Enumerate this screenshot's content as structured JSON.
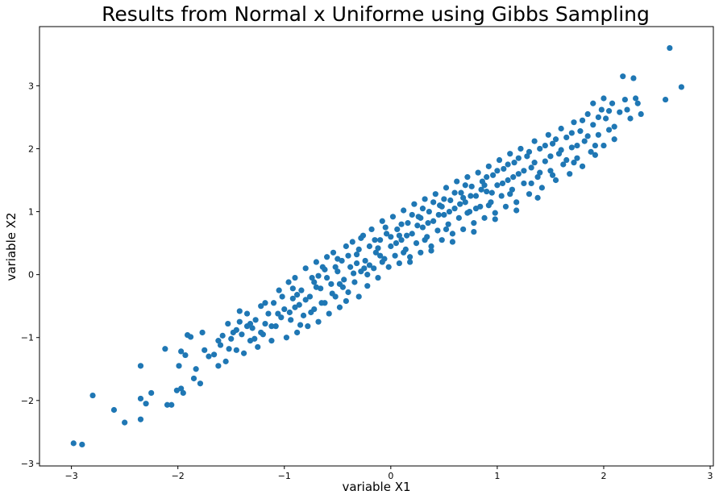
{
  "chart_data": {
    "type": "scatter",
    "title": "Results from Normal x Uniforme using Gibbs Sampling",
    "xlabel": "variable X1",
    "ylabel": "variable X2",
    "xlim": [
      -3.3,
      3.03
    ],
    "ylim": [
      -3.04,
      3.94
    ],
    "xticks": [
      -3,
      -2,
      -1,
      0,
      1,
      2,
      3
    ],
    "yticks": [
      -3,
      -2,
      -1,
      0,
      1,
      2,
      3
    ],
    "grid": false,
    "color": "#1f77b4",
    "points": [
      [
        -2.98,
        -2.68
      ],
      [
        -2.9,
        -2.7
      ],
      [
        -2.8,
        -1.92
      ],
      [
        -2.6,
        -2.15
      ],
      [
        -2.5,
        -2.35
      ],
      [
        -2.35,
        -2.3
      ],
      [
        -2.35,
        -1.97
      ],
      [
        -2.35,
        -1.45
      ],
      [
        -2.3,
        -2.05
      ],
      [
        -2.25,
        -1.88
      ],
      [
        -2.12,
        -1.18
      ],
      [
        -2.1,
        -2.07
      ],
      [
        -2.06,
        -2.07
      ],
      [
        -2.01,
        -1.84
      ],
      [
        -1.97,
        -1.81
      ],
      [
        -1.95,
        -1.88
      ],
      [
        -1.99,
        -1.45
      ],
      [
        -1.97,
        -1.22
      ],
      [
        -1.93,
        -1.28
      ],
      [
        -1.91,
        -0.96
      ],
      [
        -1.88,
        -0.99
      ],
      [
        -1.85,
        -1.65
      ],
      [
        -1.83,
        -1.5
      ],
      [
        -1.79,
        -1.73
      ],
      [
        -1.75,
        -1.2
      ],
      [
        -1.77,
        -0.92
      ],
      [
        -1.71,
        -1.3
      ],
      [
        -1.66,
        -1.27
      ],
      [
        -1.62,
        -1.45
      ],
      [
        -1.6,
        -1.12
      ],
      [
        -1.58,
        -0.97
      ],
      [
        -1.55,
        -1.38
      ],
      [
        -1.53,
        -0.78
      ],
      [
        -1.5,
        -1.02
      ],
      [
        -1.48,
        -0.92
      ],
      [
        -1.45,
        -1.2
      ],
      [
        -1.42,
        -0.75
      ],
      [
        -1.4,
        -0.95
      ],
      [
        -1.38,
        -1.25
      ],
      [
        -1.35,
        -0.62
      ],
      [
        -1.32,
        -1.05
      ],
      [
        -1.3,
        -0.85
      ],
      [
        -1.27,
        -0.72
      ],
      [
        -1.25,
        -1.15
      ],
      [
        -1.22,
        -0.5
      ],
      [
        -1.2,
        -0.95
      ],
      [
        -1.18,
        -0.78
      ],
      [
        -1.15,
        -0.62
      ],
      [
        -1.12,
        -1.05
      ],
      [
        -1.1,
        -0.45
      ],
      [
        -1.08,
        -0.82
      ],
      [
        -1.05,
        -0.25
      ],
      [
        -1.03,
        -0.68
      ],
      [
        -1.0,
        -0.55
      ],
      [
        -0.98,
        -1.0
      ],
      [
        -0.96,
        -0.12
      ],
      [
        -0.94,
        -0.72
      ],
      [
        -0.92,
        -0.38
      ],
      [
        -0.9,
        -0.05
      ],
      [
        -0.88,
        -0.92
      ],
      [
        -0.86,
        -0.48
      ],
      [
        -0.84,
        -0.25
      ],
      [
        -0.82,
        -0.65
      ],
      [
        -0.8,
        0.1
      ],
      [
        -0.78,
        -0.82
      ],
      [
        -0.76,
        -0.35
      ],
      [
        -0.74,
        -0.05
      ],
      [
        -0.72,
        -0.55
      ],
      [
        -0.7,
        0.2
      ],
      [
        -0.68,
        -0.75
      ],
      [
        -0.66,
        -0.22
      ],
      [
        -0.64,
        0.12
      ],
      [
        -0.62,
        -0.45
      ],
      [
        -0.6,
        0.28
      ],
      [
        -0.58,
        -0.62
      ],
      [
        -0.56,
        -0.15
      ],
      [
        -0.54,
        0.35
      ],
      [
        -0.52,
        -0.35
      ],
      [
        -0.5,
        0.05
      ],
      [
        -0.48,
        -0.52
      ],
      [
        -0.46,
        0.22
      ],
      [
        -0.44,
        -0.08
      ],
      [
        -0.42,
        0.45
      ],
      [
        -0.4,
        -0.28
      ],
      [
        -0.38,
        0.12
      ],
      [
        -0.36,
        0.52
      ],
      [
        -0.34,
        -0.12
      ],
      [
        -0.32,
        0.32
      ],
      [
        -0.3,
        -0.35
      ],
      [
        -0.28,
        0.05
      ],
      [
        -0.26,
        0.62
      ],
      [
        -0.24,
        0.22
      ],
      [
        -0.22,
        -0.18
      ],
      [
        -0.2,
        0.45
      ],
      [
        -0.18,
        0.72
      ],
      [
        -0.16,
        0.1
      ],
      [
        -0.14,
        0.35
      ],
      [
        -0.12,
        -0.05
      ],
      [
        -0.1,
        0.55
      ],
      [
        -0.08,
        0.85
      ],
      [
        -0.06,
        0.25
      ],
      [
        -0.04,
        0.65
      ],
      [
        -0.02,
        0.12
      ],
      [
        0.0,
        0.45
      ],
      [
        0.02,
        0.92
      ],
      [
        0.04,
        0.3
      ],
      [
        0.06,
        0.72
      ],
      [
        0.08,
        0.18
      ],
      [
        0.1,
        0.55
      ],
      [
        0.12,
        1.02
      ],
      [
        0.14,
        0.4
      ],
      [
        0.16,
        0.82
      ],
      [
        0.18,
        0.28
      ],
      [
        0.2,
        0.65
      ],
      [
        0.22,
        1.12
      ],
      [
        0.24,
        0.5
      ],
      [
        0.26,
        0.92
      ],
      [
        0.28,
        0.35
      ],
      [
        0.3,
        0.75
      ],
      [
        0.32,
        1.2
      ],
      [
        0.34,
        0.6
      ],
      [
        0.36,
        1.0
      ],
      [
        0.38,
        0.45
      ],
      [
        0.4,
        0.85
      ],
      [
        0.42,
        1.28
      ],
      [
        0.44,
        0.7
      ],
      [
        0.46,
        1.1
      ],
      [
        0.48,
        0.55
      ],
      [
        0.5,
        0.95
      ],
      [
        0.52,
        1.38
      ],
      [
        0.54,
        0.8
      ],
      [
        0.56,
        1.18
      ],
      [
        0.58,
        0.65
      ],
      [
        0.6,
        1.05
      ],
      [
        0.62,
        1.48
      ],
      [
        0.64,
        0.9
      ],
      [
        0.66,
        1.3
      ],
      [
        0.68,
        0.72
      ],
      [
        0.7,
        1.15
      ],
      [
        0.72,
        1.55
      ],
      [
        0.74,
        1.0
      ],
      [
        0.76,
        1.4
      ],
      [
        0.78,
        0.82
      ],
      [
        0.8,
        1.25
      ],
      [
        0.82,
        1.62
      ],
      [
        0.84,
        1.08
      ],
      [
        0.86,
        1.48
      ],
      [
        0.88,
        0.9
      ],
      [
        0.9,
        1.32
      ],
      [
        0.92,
        1.72
      ],
      [
        0.94,
        1.15
      ],
      [
        0.96,
        1.58
      ],
      [
        0.98,
        0.98
      ],
      [
        1.0,
        1.42
      ],
      [
        1.02,
        1.82
      ],
      [
        1.04,
        1.25
      ],
      [
        1.06,
        1.68
      ],
      [
        1.08,
        1.08
      ],
      [
        1.1,
        1.5
      ],
      [
        1.12,
        1.92
      ],
      [
        1.14,
        1.35
      ],
      [
        1.16,
        1.78
      ],
      [
        1.18,
        1.15
      ],
      [
        1.2,
        1.6
      ],
      [
        1.22,
        2.0
      ],
      [
        1.25,
        1.45
      ],
      [
        1.28,
        1.88
      ],
      [
        1.3,
        1.28
      ],
      [
        1.32,
        1.7
      ],
      [
        1.35,
        2.12
      ],
      [
        1.38,
        1.55
      ],
      [
        1.4,
        2.0
      ],
      [
        1.42,
        1.38
      ],
      [
        1.45,
        1.8
      ],
      [
        1.48,
        2.22
      ],
      [
        1.5,
        1.65
      ],
      [
        1.52,
        2.08
      ],
      [
        1.55,
        1.5
      ],
      [
        1.58,
        1.92
      ],
      [
        1.6,
        2.32
      ],
      [
        1.62,
        1.75
      ],
      [
        1.65,
        2.18
      ],
      [
        1.68,
        1.6
      ],
      [
        1.7,
        2.02
      ],
      [
        1.72,
        2.42
      ],
      [
        1.75,
        1.85
      ],
      [
        1.78,
        2.28
      ],
      [
        1.8,
        1.72
      ],
      [
        1.82,
        2.12
      ],
      [
        1.85,
        2.55
      ],
      [
        1.88,
        1.95
      ],
      [
        1.9,
        2.38
      ],
      [
        1.92,
        1.9
      ],
      [
        1.95,
        2.22
      ],
      [
        1.98,
        2.62
      ],
      [
        2.0,
        2.05
      ],
      [
        2.02,
        2.48
      ],
      [
        2.05,
        2.3
      ],
      [
        2.08,
        2.72
      ],
      [
        2.1,
        2.15
      ],
      [
        2.15,
        2.58
      ],
      [
        2.18,
        3.15
      ],
      [
        2.2,
        2.78
      ],
      [
        2.22,
        2.62
      ],
      [
        2.25,
        2.48
      ],
      [
        2.28,
        3.12
      ],
      [
        2.32,
        2.72
      ],
      [
        2.35,
        2.55
      ],
      [
        2.58,
        2.78
      ],
      [
        2.62,
        3.6
      ],
      [
        2.73,
        2.98
      ],
      [
        -1.45,
        -0.88
      ],
      [
        -1.35,
        -0.82
      ],
      [
        -1.28,
        -1.02
      ],
      [
        -1.18,
        -0.45
      ],
      [
        -1.12,
        -0.82
      ],
      [
        -1.06,
        -0.62
      ],
      [
        -1.02,
        -0.35
      ],
      [
        -0.95,
        -0.6
      ],
      [
        -0.9,
        -0.52
      ],
      [
        -0.85,
        -0.8
      ],
      [
        -0.8,
        -0.4
      ],
      [
        -0.75,
        -0.6
      ],
      [
        -0.7,
        -0.2
      ],
      [
        -0.65,
        -0.45
      ],
      [
        -0.6,
        -0.05
      ],
      [
        -0.55,
        -0.3
      ],
      [
        -0.5,
        0.25
      ],
      [
        -0.45,
        -0.2
      ],
      [
        -0.4,
        0.3
      ],
      [
        -0.35,
        0.02
      ],
      [
        -0.3,
        0.4
      ],
      [
        -0.25,
        0.1
      ],
      [
        -0.2,
        0.15
      ],
      [
        -0.15,
        0.55
      ],
      [
        -0.1,
        0.3
      ],
      [
        -0.05,
        0.75
      ],
      [
        0.0,
        0.6
      ],
      [
        0.05,
        0.5
      ],
      [
        0.1,
        0.8
      ],
      [
        0.15,
        0.62
      ],
      [
        0.2,
        0.95
      ],
      [
        0.25,
        0.78
      ],
      [
        0.3,
        1.05
      ],
      [
        0.35,
        0.82
      ],
      [
        0.4,
        1.15
      ],
      [
        0.45,
        0.95
      ],
      [
        0.5,
        1.2
      ],
      [
        0.55,
        1.0
      ],
      [
        0.6,
        1.3
      ],
      [
        0.65,
        1.12
      ],
      [
        0.7,
        1.42
      ],
      [
        0.75,
        1.25
      ],
      [
        0.8,
        1.05
      ],
      [
        0.85,
        1.35
      ],
      [
        0.9,
        1.55
      ],
      [
        0.95,
        1.3
      ],
      [
        1.0,
        1.65
      ],
      [
        1.05,
        1.45
      ],
      [
        1.1,
        1.75
      ],
      [
        1.15,
        1.55
      ],
      [
        1.2,
        1.85
      ],
      [
        1.25,
        1.65
      ],
      [
        1.3,
        1.95
      ],
      [
        1.35,
        1.78
      ],
      [
        1.4,
        1.62
      ],
      [
        1.45,
        2.05
      ],
      [
        1.5,
        1.88
      ],
      [
        1.55,
        2.15
      ],
      [
        1.6,
        1.98
      ],
      [
        1.65,
        1.82
      ],
      [
        1.7,
        2.25
      ],
      [
        1.75,
        2.05
      ],
      [
        1.8,
        2.45
      ],
      [
        1.85,
        2.2
      ],
      [
        1.9,
        2.72
      ],
      [
        1.95,
        2.5
      ],
      [
        2.0,
        2.8
      ],
      [
        2.05,
        2.6
      ],
      [
        2.1,
        2.35
      ],
      [
        2.3,
        2.8
      ],
      [
        -0.92,
        -0.22
      ],
      [
        -0.72,
        -0.12
      ],
      [
        -0.52,
        0.12
      ],
      [
        -0.32,
        0.18
      ],
      [
        -0.12,
        0.42
      ],
      [
        0.08,
        0.62
      ],
      [
        0.28,
        0.9
      ],
      [
        0.48,
        1.08
      ],
      [
        0.68,
        1.22
      ],
      [
        0.88,
        1.42
      ],
      [
        -1.62,
        -1.05
      ],
      [
        -1.52,
        -1.18
      ],
      [
        -1.42,
        -0.58
      ],
      [
        -1.32,
        -0.78
      ],
      [
        -1.22,
        -0.92
      ],
      [
        -0.62,
        0.08
      ],
      [
        -0.42,
        -0.42
      ],
      [
        -0.22,
        0.0
      ],
      [
        0.18,
        0.2
      ],
      [
        0.38,
        0.38
      ],
      [
        0.58,
        0.52
      ],
      [
        0.78,
        0.68
      ],
      [
        0.98,
        0.88
      ],
      [
        1.18,
        1.02
      ],
      [
        1.38,
        1.22
      ],
      [
        -0.88,
        -0.32
      ],
      [
        -0.68,
        -0.02
      ],
      [
        -0.48,
        -0.15
      ],
      [
        -0.28,
        0.58
      ],
      [
        -0.08,
        0.2
      ],
      [
        0.12,
        0.35
      ],
      [
        0.32,
        0.55
      ],
      [
        0.52,
        0.72
      ],
      [
        0.72,
        0.98
      ],
      [
        0.92,
        1.1
      ],
      [
        1.12,
        1.28
      ],
      [
        1.32,
        1.45
      ],
      [
        1.52,
        1.58
      ],
      [
        1.72,
        1.78
      ],
      [
        1.92,
        2.05
      ]
    ]
  }
}
